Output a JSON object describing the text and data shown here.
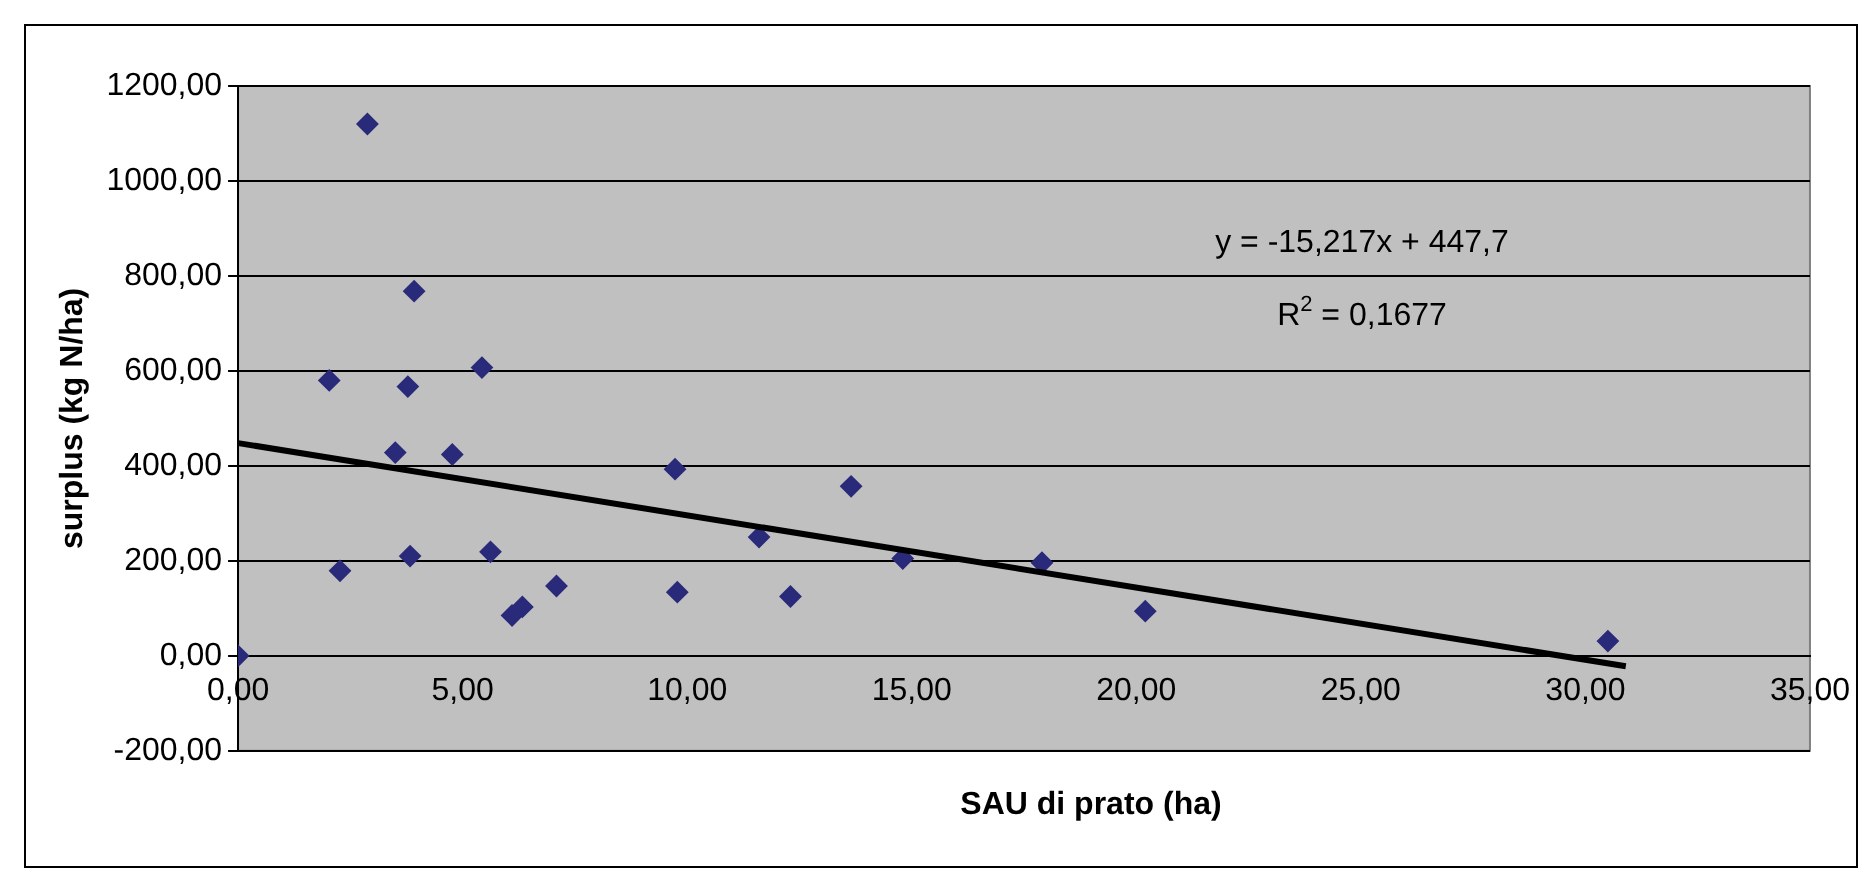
{
  "chart_data": {
    "type": "scatter",
    "xlabel": "SAU di prato (ha)",
    "ylabel": "surplus (kg N/ha)",
    "series": [
      {
        "color": "#2a2a7a",
        "x": [
          0,
          2.03,
          2.27,
          2.88,
          3.5,
          3.78,
          3.83,
          3.92,
          4.77,
          5.43,
          5.62,
          6.1,
          6.33,
          7.09,
          9.73,
          9.78,
          11.6,
          12.3,
          13.65,
          14.8,
          17.9,
          20.2,
          30.5
        ],
        "values": [
          0,
          580,
          179,
          1120,
          428,
          567,
          210,
          768,
          424,
          607,
          219,
          85,
          103,
          147,
          393,
          134,
          250,
          125,
          357,
          205,
          196,
          94,
          31
        ]
      },
      {
        "type": "line",
        "color": "#000000",
        "x": [
          0,
          30.9
        ],
        "values": [
          448,
          -22
        ],
        "marker": "none"
      }
    ],
    "xlim": [
      0,
      35
    ],
    "xticks": [
      {
        "value": 0,
        "label": "0,00"
      },
      {
        "value": 5,
        "label": "5,00"
      },
      {
        "value": 10,
        "label": "10,00"
      },
      {
        "value": 15,
        "label": "15,00"
      },
      {
        "value": 20,
        "label": "20,00"
      },
      {
        "value": 25,
        "label": "25,00"
      },
      {
        "value": 30,
        "label": "30,00"
      },
      {
        "value": 35,
        "label": "35,00"
      }
    ],
    "ylim": [
      -200,
      1200
    ],
    "yticks": [
      {
        "value": -200,
        "label": "-200,00"
      },
      {
        "value": 0,
        "label": "0,00"
      },
      {
        "value": 200,
        "label": "200,00"
      },
      {
        "value": 400,
        "label": "400,00"
      },
      {
        "value": 600,
        "label": "600,00"
      },
      {
        "value": 800,
        "label": "800,00"
      },
      {
        "value": 1000,
        "label": "1000,00"
      },
      {
        "value": 1200,
        "label": "1200,00"
      }
    ],
    "grid": "y",
    "legend": false,
    "marker": "diamond",
    "annotations": [
      "y = -15,217x + 447,7",
      "R$^{2}$ = 0,1677"
    ]
  }
}
